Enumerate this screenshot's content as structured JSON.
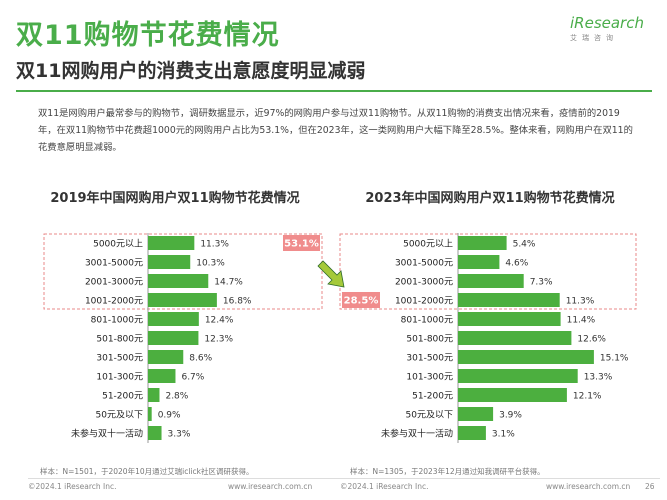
{
  "header": {
    "title": "双11购物节花费情况",
    "subtitle": "双11网购用户的消费支出意愿度明显减弱",
    "logo_main": "iResearch",
    "logo_sub": "艾瑞咨询"
  },
  "summary": "双11是网购用户最常参与的购物节，调研数据显示，近97%的网购用户参与过双11购物节。从双11购物的消费支出情况来看，疫情前的2019年，在双11购物节中花费超1000元的网购用户占比为53.1%，但在2023年，这一类网购用户大幅下降至28.5%。整体来看，网购用户在双11的花费意愿明显减弱。",
  "colors": {
    "bar": "#4caf3f",
    "accent": "#4aad4a",
    "highlight_box": "#f08c8c",
    "dashed_border": "#e88a8a",
    "arrow": "#a5c93a"
  },
  "chart_data": [
    {
      "type": "bar",
      "orientation": "horizontal",
      "title": "2019年中国网购用户双11购物节花费情况",
      "categories": [
        "5000元以上",
        "3001-5000元",
        "2001-3000元",
        "1001-2000元",
        "801-1000元",
        "501-800元",
        "301-500元",
        "101-300元",
        "51-200元",
        "50元及以下",
        "未参与双十一活动"
      ],
      "values": [
        11.3,
        10.3,
        14.7,
        16.8,
        12.4,
        12.3,
        8.6,
        6.7,
        2.8,
        0.9,
        3.3
      ],
      "value_labels": [
        "11.3%",
        "10.3%",
        "14.7%",
        "16.8%",
        "12.4%",
        "12.3%",
        "8.6%",
        "6.7%",
        "2.8%",
        "0.9%",
        "3.3%"
      ],
      "highlight_label": "53.1%",
      "highlight_range": [
        0,
        3
      ],
      "source": "样本：N=1501，于2020年10月通过艾瑞iclick社区调研获得。"
    },
    {
      "type": "bar",
      "orientation": "horizontal",
      "title": "2023年中国网购用户双11购物节花费情况",
      "categories": [
        "5000元以上",
        "3001-5000元",
        "2001-3000元",
        "1001-2000元",
        "801-1000元",
        "501-800元",
        "301-500元",
        "101-300元",
        "51-200元",
        "50元及以下",
        "未参与双十一活动"
      ],
      "values": [
        5.4,
        4.6,
        7.3,
        11.3,
        11.4,
        12.6,
        15.1,
        13.3,
        12.1,
        3.9,
        3.1
      ],
      "value_labels": [
        "5.4%",
        "4.6%",
        "7.3%",
        "11.3%",
        "11.4%",
        "12.6%",
        "15.1%",
        "13.3%",
        "12.1%",
        "3.9%",
        "3.1%"
      ],
      "highlight_label": "28.5%",
      "highlight_range": [
        0,
        3
      ],
      "source": "样本：N=1305，于2023年12月通过知我调研平台获得。"
    }
  ],
  "footer": {
    "left_copyright": "©2024.1 iResearch Inc.",
    "left_site": "www.iresearch.com.cn",
    "right_copyright": "©2024.1 iResearch Inc.",
    "right_site": "www.iresearch.com.cn",
    "page_number": "26"
  }
}
